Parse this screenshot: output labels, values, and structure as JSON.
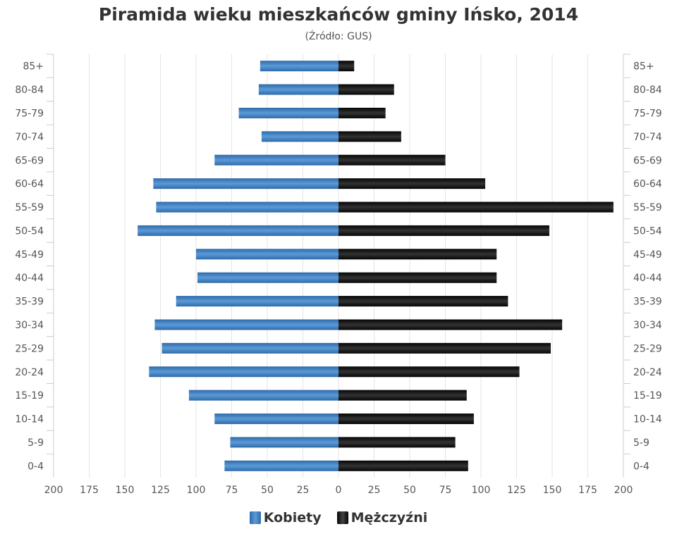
{
  "chart_data": {
    "type": "bar",
    "orientation": "horizontal-pyramid",
    "title": "Piramida wieku mieszkańców gminy Ińsko, 2014",
    "subtitle": "(Źródło: GUS)",
    "categories": [
      "85+",
      "80-84",
      "75-79",
      "70-74",
      "65-69",
      "60-64",
      "55-59",
      "50-54",
      "45-49",
      "40-44",
      "35-39",
      "30-34",
      "25-29",
      "20-24",
      "15-19",
      "10-14",
      "5-9",
      "0-4"
    ],
    "series": [
      {
        "name": "Kobiety",
        "color": "#4a86c5",
        "values": [
          55,
          56,
          70,
          54,
          87,
          130,
          128,
          141,
          100,
          99,
          114,
          129,
          124,
          133,
          105,
          87,
          76,
          80
        ]
      },
      {
        "name": "Mężczyźni",
        "color": "#1a1a1a",
        "values": [
          11,
          39,
          33,
          44,
          75,
          103,
          193,
          148,
          111,
          111,
          119,
          157,
          149,
          127,
          90,
          95,
          82,
          91
        ]
      }
    ],
    "xticks": [
      "200",
      "175",
      "150",
      "125",
      "100",
      "75",
      "50",
      "25",
      "0",
      "25",
      "50",
      "75",
      "100",
      "125",
      "150",
      "175",
      "200"
    ],
    "xlim": [
      -200,
      200
    ],
    "grid": true,
    "legend": "bottom-center"
  }
}
